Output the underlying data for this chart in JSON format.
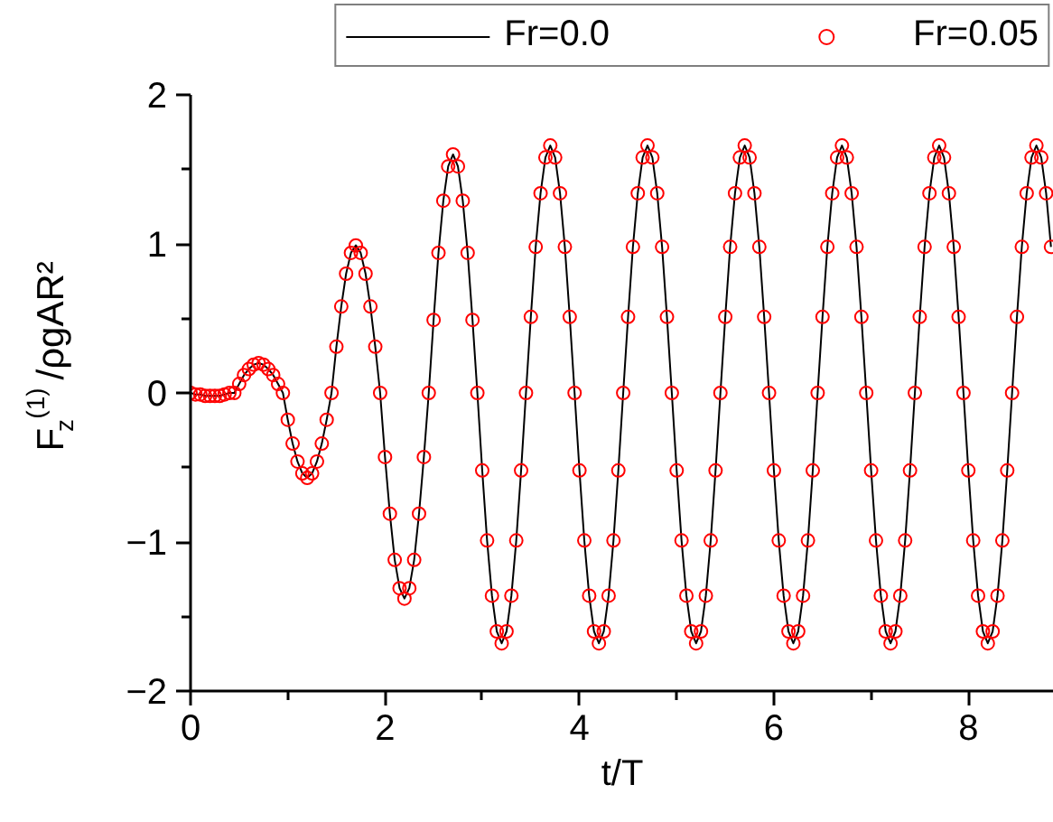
{
  "chart_data": {
    "type": "line",
    "xlabel": "t/T",
    "ylabel": "F$_{z}$$^{(1)}$/ρgAR²",
    "x": [
      0,
      0.05,
      0.1,
      0.15,
      0.2,
      0.25,
      0.3,
      0.35,
      0.4,
      0.45,
      0.5,
      0.55,
      0.6,
      0.65,
      0.7,
      0.75,
      0.8,
      0.85,
      0.9,
      0.95,
      1.0,
      1.05,
      1.1,
      1.15,
      1.2,
      1.25,
      1.3,
      1.35,
      1.4,
      1.45,
      1.5,
      1.55,
      1.6,
      1.65,
      1.7,
      1.75,
      1.8,
      1.85,
      1.9,
      1.95,
      2.0,
      2.05,
      2.1,
      2.15,
      2.2,
      2.25,
      2.3,
      2.35,
      2.4,
      2.45,
      2.5,
      2.55,
      2.6,
      2.65,
      2.7,
      2.75,
      2.8,
      2.85,
      2.9,
      2.95,
      3.0,
      3.05,
      3.1,
      3.15,
      3.2,
      3.25,
      3.3,
      3.35,
      3.4,
      3.45,
      3.5,
      3.55,
      3.6,
      3.65,
      3.7,
      3.75,
      3.8,
      3.85,
      3.9,
      3.95,
      4.0,
      4.05,
      4.1,
      4.15,
      4.2,
      4.25,
      4.3,
      4.35,
      4.4,
      4.45,
      4.5,
      4.55,
      4.6,
      4.65,
      4.7,
      4.75,
      4.8,
      4.85,
      4.9,
      4.95,
      5.0,
      5.05,
      5.1,
      5.15,
      5.2,
      5.25,
      5.3,
      5.35,
      5.4,
      5.45,
      5.5,
      5.55,
      5.6,
      5.65,
      5.7,
      5.75,
      5.8,
      5.85,
      5.9,
      5.95,
      6.0,
      6.05,
      6.1,
      6.15,
      6.2,
      6.25,
      6.3,
      6.35,
      6.4,
      6.45,
      6.5,
      6.55,
      6.6,
      6.65,
      6.7,
      6.75,
      6.8,
      6.85,
      6.9,
      6.95,
      7.0,
      7.05,
      7.1,
      7.15,
      7.2,
      7.25,
      7.3,
      7.35,
      7.4,
      7.45,
      7.5,
      7.55,
      7.6,
      7.65,
      7.7,
      7.75,
      7.8,
      7.85,
      7.9,
      7.95,
      8.0,
      8.05,
      8.1,
      8.15,
      8.2,
      8.25,
      8.3,
      8.35,
      8.4,
      8.45,
      8.5,
      8.55,
      8.6,
      8.65,
      8.7,
      8.75,
      8.8,
      8.85
    ],
    "series": [
      {
        "name": "Fr=0.0",
        "color": "#000000",
        "marker": "none",
        "values": [
          0,
          -0.01,
          -0.01,
          -0.02,
          -0.02,
          -0.02,
          -0.02,
          -0.01,
          0,
          0,
          0.06,
          0.12,
          0.16,
          0.19,
          0.2,
          0.19,
          0.16,
          0.12,
          0.06,
          0,
          -0.18,
          -0.34,
          -0.46,
          -0.54,
          -0.57,
          -0.54,
          -0.46,
          -0.34,
          -0.18,
          0,
          0.31,
          0.58,
          0.8,
          0.94,
          0.99,
          0.94,
          0.8,
          0.58,
          0.31,
          0,
          -0.43,
          -0.81,
          -1.12,
          -1.31,
          -1.38,
          -1.31,
          -1.12,
          -0.81,
          -0.43,
          0,
          0.49,
          0.94,
          1.29,
          1.52,
          1.6,
          1.52,
          1.29,
          0.94,
          0.49,
          0,
          -0.52,
          -0.99,
          -1.36,
          -1.6,
          -1.68,
          -1.6,
          -1.36,
          -0.99,
          -0.52,
          0,
          0.51,
          0.98,
          1.34,
          1.58,
          1.66,
          1.58,
          1.34,
          0.98,
          0.51,
          0,
          -0.52,
          -0.99,
          -1.36,
          -1.6,
          -1.68,
          -1.6,
          -1.36,
          -0.99,
          -0.52,
          0,
          0.51,
          0.98,
          1.34,
          1.58,
          1.66,
          1.58,
          1.34,
          0.98,
          0.51,
          0,
          -0.52,
          -0.99,
          -1.36,
          -1.6,
          -1.68,
          -1.6,
          -1.36,
          -0.99,
          -0.52,
          0,
          0.51,
          0.98,
          1.34,
          1.58,
          1.66,
          1.58,
          1.34,
          0.98,
          0.51,
          0,
          -0.52,
          -0.99,
          -1.36,
          -1.6,
          -1.68,
          -1.6,
          -1.36,
          -0.99,
          -0.52,
          0,
          0.51,
          0.98,
          1.34,
          1.58,
          1.66,
          1.58,
          1.34,
          0.98,
          0.51,
          0,
          -0.52,
          -0.99,
          -1.36,
          -1.6,
          -1.68,
          -1.6,
          -1.36,
          -0.99,
          -0.52,
          0,
          0.51,
          0.98,
          1.34,
          1.58,
          1.66,
          1.58,
          1.34,
          0.98,
          0.51,
          0,
          -0.52,
          -0.99,
          -1.36,
          -1.6,
          -1.68,
          -1.6,
          -1.36,
          -0.99,
          -0.52,
          0,
          0.51,
          0.98,
          1.34,
          1.58,
          1.66,
          1.58,
          1.34,
          0.98
        ]
      },
      {
        "name": "Fr=0.05",
        "type": "scatter",
        "color": "#ff0000",
        "marker": "circle",
        "values": [
          0,
          -0.01,
          -0.01,
          -0.02,
          -0.02,
          -0.02,
          -0.02,
          -0.01,
          0,
          0,
          0.06,
          0.12,
          0.16,
          0.19,
          0.2,
          0.19,
          0.16,
          0.12,
          0.06,
          0,
          -0.18,
          -0.34,
          -0.46,
          -0.54,
          -0.57,
          -0.54,
          -0.46,
          -0.34,
          -0.18,
          0,
          0.31,
          0.58,
          0.8,
          0.94,
          0.99,
          0.94,
          0.8,
          0.58,
          0.31,
          0,
          -0.43,
          -0.81,
          -1.12,
          -1.31,
          -1.38,
          -1.31,
          -1.12,
          -0.81,
          -0.43,
          0,
          0.49,
          0.94,
          1.29,
          1.52,
          1.6,
          1.52,
          1.29,
          0.94,
          0.49,
          0,
          -0.52,
          -0.99,
          -1.36,
          -1.6,
          -1.68,
          -1.6,
          -1.36,
          -0.99,
          -0.52,
          0,
          0.51,
          0.98,
          1.34,
          1.58,
          1.66,
          1.58,
          1.34,
          0.98,
          0.51,
          0,
          -0.52,
          -0.99,
          -1.36,
          -1.6,
          -1.68,
          -1.6,
          -1.36,
          -0.99,
          -0.52,
          0,
          0.51,
          0.98,
          1.34,
          1.58,
          1.66,
          1.58,
          1.34,
          0.98,
          0.51,
          0,
          -0.52,
          -0.99,
          -1.36,
          -1.6,
          -1.68,
          -1.6,
          -1.36,
          -0.99,
          -0.52,
          0,
          0.51,
          0.98,
          1.34,
          1.58,
          1.66,
          1.58,
          1.34,
          0.98,
          0.51,
          0,
          -0.52,
          -0.99,
          -1.36,
          -1.6,
          -1.68,
          -1.6,
          -1.36,
          -0.99,
          -0.52,
          0,
          0.51,
          0.98,
          1.34,
          1.58,
          1.66,
          1.58,
          1.34,
          0.98,
          0.51,
          0,
          -0.52,
          -0.99,
          -1.36,
          -1.6,
          -1.68,
          -1.6,
          -1.36,
          -0.99,
          -0.52,
          0,
          0.51,
          0.98,
          1.34,
          1.58,
          1.66,
          1.58,
          1.34,
          0.98,
          0.51,
          0,
          -0.52,
          -0.99,
          -1.36,
          -1.6,
          -1.68,
          -1.6,
          -1.36,
          -0.99,
          -0.52,
          0,
          0.51,
          0.98,
          1.34,
          1.58,
          1.66,
          1.58,
          1.34,
          0.98
        ]
      }
    ],
    "xlim": [
      0,
      8.88
    ],
    "ylim": [
      -2,
      2
    ],
    "xticks": [
      0,
      {
        "value": 1,
        "label": null
      },
      2,
      {
        "value": 3,
        "label": null
      },
      4,
      {
        "value": 5,
        "label": null
      },
      6,
      {
        "value": 7,
        "label": null
      },
      8
    ],
    "yticks": [
      -2,
      {
        "value": -1.5,
        "label": null
      },
      -1,
      {
        "value": -0.5,
        "label": null
      },
      0,
      {
        "value": 0.5,
        "label": null
      },
      1,
      {
        "value": 1.5,
        "label": null
      },
      2
    ],
    "grid": false,
    "legend": "top right"
  }
}
